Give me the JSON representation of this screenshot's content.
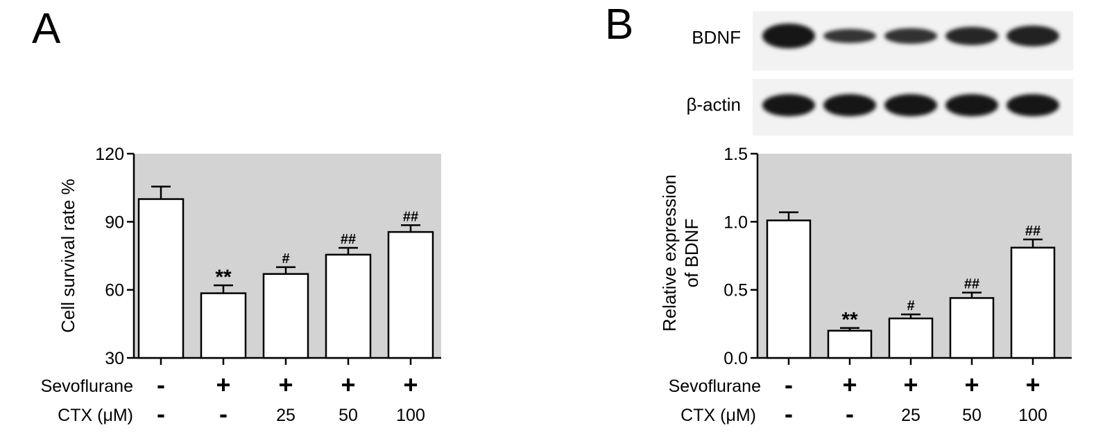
{
  "panels": [
    {
      "letter": "A",
      "chart_data": {
        "type": "bar",
        "title": "",
        "xlabel": "",
        "ylabel": "Cell survival rate %",
        "ylim": [
          30,
          120
        ],
        "yticks": [
          30,
          60,
          90,
          120
        ],
        "ytick_labels": [
          "30",
          "60",
          "90",
          "120"
        ],
        "categories": [
          "1",
          "2",
          "3",
          "4",
          "5"
        ],
        "values": [
          100,
          58.5,
          67,
          75.5,
          85.5
        ],
        "errors": [
          5.5,
          3.5,
          3,
          3,
          3
        ],
        "significance": [
          "",
          "**",
          "#",
          "##",
          "##"
        ],
        "background": "#d3d3d3",
        "bar_fill": "#ffffff",
        "grid": false,
        "legend": "none"
      },
      "conditions": {
        "sevoflurane_label": "Sevoflurane",
        "sevoflurane": [
          "-",
          "+",
          "+",
          "+",
          "+"
        ],
        "ctx_label": "CTX (μM)",
        "ctx": [
          "-",
          "-",
          "25",
          "50",
          "100"
        ]
      }
    },
    {
      "letter": "B",
      "blot": {
        "bands": [
          {
            "label": "BDNF",
            "intensities": [
              1.0,
              0.35,
              0.45,
              0.6,
              0.75
            ]
          },
          {
            "label": "β-actin",
            "intensities": [
              1.0,
              1.0,
              1.0,
              1.0,
              1.0
            ]
          }
        ]
      },
      "chart_data": {
        "type": "bar",
        "title": "",
        "xlabel": "",
        "ylabel_lines": [
          "Relative expression",
          "of BDNF"
        ],
        "ylim": [
          0.0,
          1.5
        ],
        "yticks": [
          0.0,
          0.5,
          1.0,
          1.5
        ],
        "ytick_labels": [
          "0.0",
          "0.5",
          "1.0",
          "1.5"
        ],
        "categories": [
          "1",
          "2",
          "3",
          "4",
          "5"
        ],
        "values": [
          1.01,
          0.2,
          0.29,
          0.44,
          0.81
        ],
        "errors": [
          0.06,
          0.02,
          0.03,
          0.04,
          0.06
        ],
        "significance": [
          "",
          "**",
          "#",
          "##",
          "##"
        ],
        "background": "#d3d3d3",
        "bar_fill": "#ffffff",
        "grid": false,
        "legend": "none"
      },
      "conditions": {
        "sevoflurane_label": "Sevoflurane",
        "sevoflurane": [
          "-",
          "+",
          "+",
          "+",
          "+"
        ],
        "ctx_label": "CTX (μM)",
        "ctx": [
          "-",
          "-",
          "25",
          "50",
          "100"
        ]
      }
    }
  ]
}
